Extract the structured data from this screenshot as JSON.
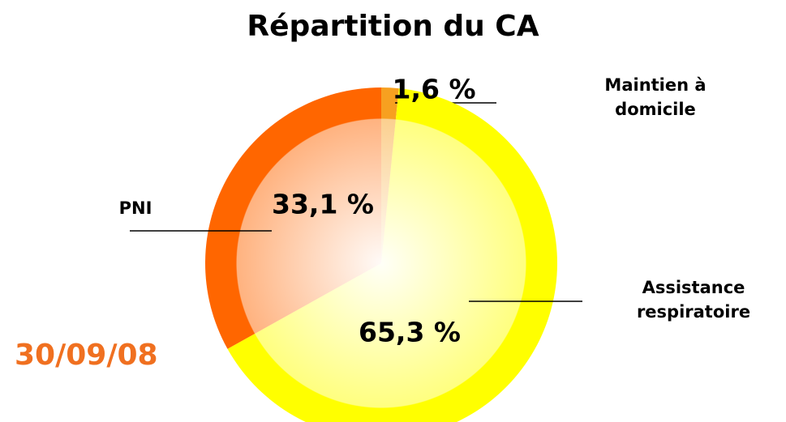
{
  "chart_data": {
    "type": "pie",
    "title": "Répartition du CA",
    "annotation": "30/09/08",
    "categories": [
      "Maintien à domicile",
      "Assistance respiratoire",
      "PNI"
    ],
    "values": [
      1.6,
      65.3,
      33.1
    ],
    "value_labels": [
      "1,6 %",
      "65,3 %",
      "33,1 %"
    ],
    "colors": [
      "#f7a020",
      "#ffff00",
      "#ff6600"
    ]
  }
}
